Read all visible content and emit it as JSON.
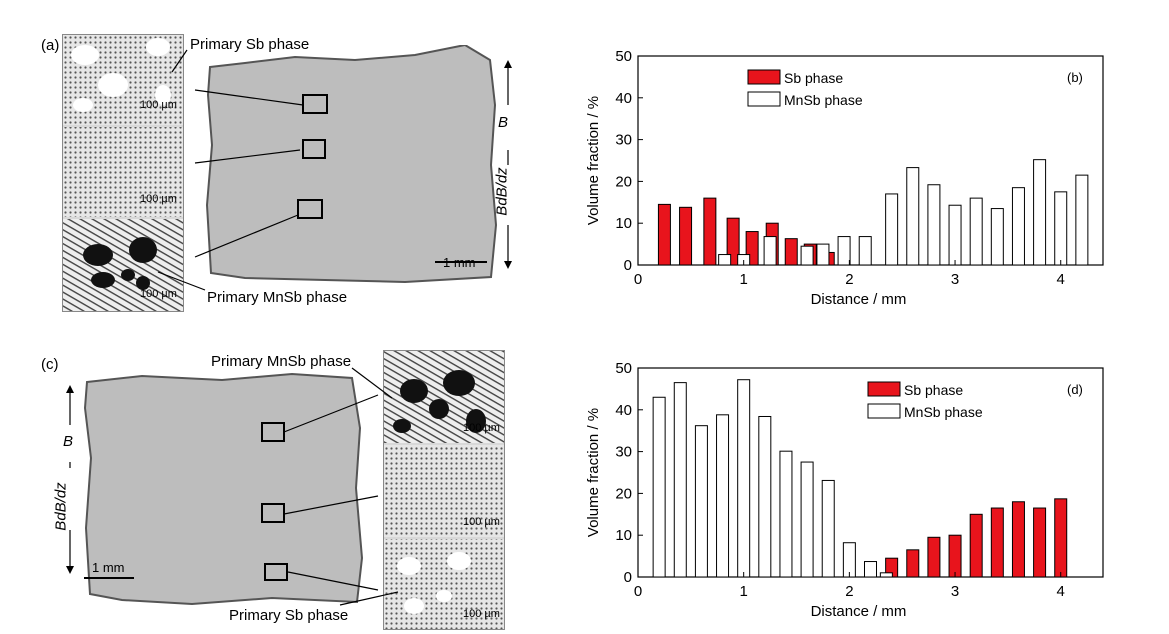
{
  "panels": {
    "a": {
      "letter": "(a)",
      "top_label": "Primary Sb phase",
      "bottom_label": "Primary MnSb phase",
      "scale_inset": "100 µm",
      "scale_main": "1 mm",
      "field_label": "B",
      "gradient_label": "BdB/dz"
    },
    "c": {
      "letter": "(c)",
      "top_label": "Primary MnSb phase",
      "bottom_label": "Primary Sb phase",
      "scale_inset": "100 µm",
      "scale_main": "1 mm",
      "field_label": "B",
      "gradient_label": "BdB/dz"
    }
  },
  "colors": {
    "sb_fill": "#e8141c",
    "mnsb_fill": "#ffffff",
    "micro_bg": "#d4d4d4"
  },
  "chart_data": [
    {
      "type": "bar",
      "panel": "(b)",
      "xlabel": "Distance / mm",
      "ylabel": "Volume fraction / %",
      "xlim": [
        0,
        4.4
      ],
      "ylim": [
        0,
        50
      ],
      "xticks": [
        0,
        1,
        2,
        3,
        4
      ],
      "yticks": [
        0,
        10,
        20,
        30,
        40,
        50
      ],
      "legend_position": "top-left",
      "series": [
        {
          "name": "Sb phase",
          "color": "#e8141c",
          "x": [
            0.25,
            0.45,
            0.68,
            0.9,
            1.08,
            1.27,
            1.45,
            1.63,
            1.8
          ],
          "values": [
            14.5,
            13.8,
            16,
            11.2,
            8,
            10,
            6.3,
            5,
            3
          ]
        },
        {
          "name": "MnSb phase",
          "color": "#ffffff",
          "x": [
            0.82,
            1.0,
            1.25,
            1.6,
            1.75,
            1.95,
            2.15,
            2.4,
            2.6,
            2.8,
            3.0,
            3.2,
            3.4,
            3.6,
            3.8,
            4.0,
            4.2
          ],
          "values": [
            2.5,
            2.5,
            6.8,
            4.5,
            5,
            6.8,
            6.8,
            17,
            23.3,
            19.2,
            14.3,
            16,
            13.5,
            18.5,
            25.2,
            17.5,
            21.5
          ]
        }
      ]
    },
    {
      "type": "bar",
      "panel": "(d)",
      "xlabel": "Distance / mm",
      "ylabel": "Volume fraction / %",
      "xlim": [
        0,
        4.4
      ],
      "ylim": [
        0,
        50
      ],
      "xticks": [
        0,
        1,
        2,
        3,
        4
      ],
      "yticks": [
        0,
        10,
        20,
        30,
        40,
        50
      ],
      "legend_position": "top-right",
      "series": [
        {
          "name": "Sb phase",
          "color": "#e8141c",
          "x": [
            2.2,
            2.4,
            2.6,
            2.8,
            3.0,
            3.2,
            3.4,
            3.6,
            3.8,
            4.0
          ],
          "values": [
            1,
            4.5,
            6.5,
            9.5,
            10,
            15,
            16.5,
            18,
            16.5,
            18.7
          ]
        },
        {
          "name": "MnSb phase",
          "color": "#ffffff",
          "x": [
            0.2,
            0.4,
            0.6,
            0.8,
            1.0,
            1.2,
            1.4,
            1.6,
            1.8,
            2.0,
            2.2,
            2.35
          ],
          "values": [
            43,
            46.5,
            36.2,
            38.8,
            47.2,
            38.4,
            30.1,
            27.5,
            23.1,
            8.2,
            3.7,
            1
          ]
        }
      ]
    }
  ]
}
